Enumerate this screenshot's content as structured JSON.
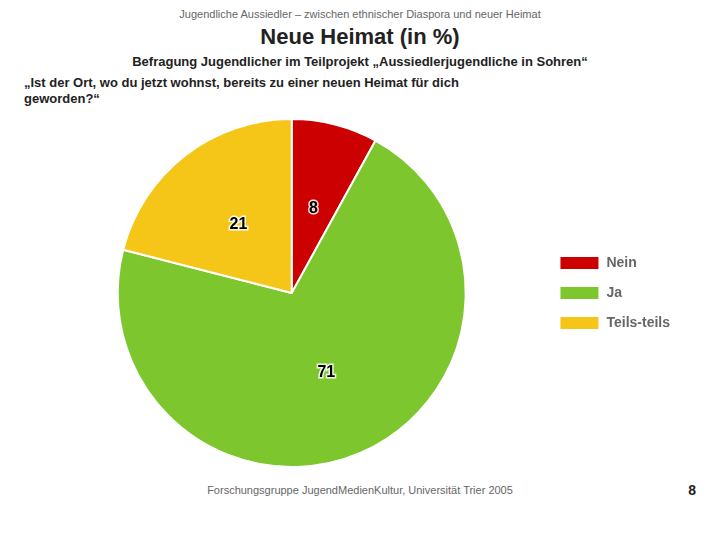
{
  "chart_data": {
    "type": "pie",
    "title": "Neue Heimat (in %)",
    "subtitle": "Befragung Jugendlicher im Teilprojekt „Aussiedlerjugendliche in Sohren“",
    "annotations": [
      "Jugendliche Aussiedler – zwischen ethnischer Diaspora und neuer Heimat",
      "„Ist der Ort, wo du jetzt wohnst, bereits zu einer neuen Heimat für dich\ngeworden?“",
      "Forschungsgruppe JugendMedienKultur, Universität Trier 2005",
      "8"
    ],
    "categories": [
      "Nein",
      "Ja",
      "Teils-teils"
    ],
    "values": [
      8,
      71,
      21
    ],
    "colors": [
      "#CC0000",
      "#7DC62E",
      "#F5C518"
    ],
    "data_labels": true,
    "legend": "right"
  }
}
